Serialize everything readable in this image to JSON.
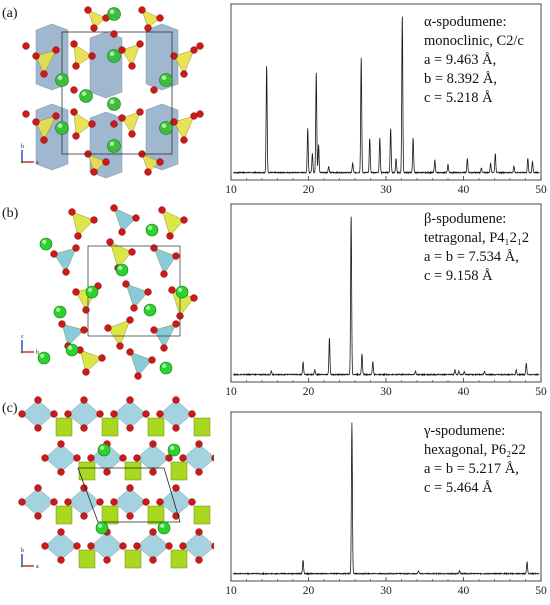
{
  "panels": [
    {
      "label": "(a)",
      "text_lines": [
        "α-spodumene:",
        "monoclinic, C2/c",
        "a = 9.463 Å,",
        "b = 8.392 Å,",
        "c = 5.218 Å"
      ],
      "crystal": {
        "axes": [
          "b",
          "a"
        ],
        "colors": {
          "tetra": "#e8e04a",
          "octa": "#7f9fbf",
          "oxygen": "#d01818",
          "lithium": "#3dbf3d"
        }
      }
    },
    {
      "label": "(b)",
      "text_lines": [
        "β-spodumene:",
        "tetragonal, P4₁2₁2",
        "a = b = 7.534 Å,",
        "c = 9.158 Å"
      ],
      "crystal": {
        "axes": [
          "c",
          "b"
        ],
        "colors": {
          "tetra": "#d8e63a",
          "octa": "#7ec8d8",
          "oxygen": "#d01818",
          "lithium": "#2ed22e"
        }
      }
    },
    {
      "label": "(c)",
      "text_lines": [
        "γ-spodumene:",
        "hexagonal, P6₂22",
        "a = b = 5.217 Å,",
        "c = 5.464 Å"
      ],
      "crystal": {
        "axes": [
          "b",
          "a"
        ],
        "colors": {
          "tetra": "#a8d820",
          "octa": "#8ec8d8",
          "oxygen": "#d01818",
          "lithium": "#2ed22e"
        }
      }
    }
  ],
  "chart_data": [
    {
      "type": "line",
      "xlim": [
        10,
        50
      ],
      "xticks": [
        "10",
        "20",
        "30",
        "40",
        "50"
      ],
      "peaks": [
        {
          "x": 14.6,
          "y": 0.68
        },
        {
          "x": 19.9,
          "y": 0.28
        },
        {
          "x": 20.5,
          "y": 0.12
        },
        {
          "x": 21.0,
          "y": 0.64
        },
        {
          "x": 21.3,
          "y": 0.18
        },
        {
          "x": 22.6,
          "y": 0.04
        },
        {
          "x": 25.7,
          "y": 0.06
        },
        {
          "x": 26.8,
          "y": 0.73
        },
        {
          "x": 27.9,
          "y": 0.22
        },
        {
          "x": 29.2,
          "y": 0.22
        },
        {
          "x": 30.6,
          "y": 0.28
        },
        {
          "x": 31.3,
          "y": 0.09
        },
        {
          "x": 32.1,
          "y": 1.0
        },
        {
          "x": 33.5,
          "y": 0.22
        },
        {
          "x": 36.3,
          "y": 0.08
        },
        {
          "x": 38.0,
          "y": 0.05
        },
        {
          "x": 40.5,
          "y": 0.09
        },
        {
          "x": 42.3,
          "y": 0.03
        },
        {
          "x": 43.5,
          "y": 0.06
        },
        {
          "x": 44.1,
          "y": 0.12
        },
        {
          "x": 46.5,
          "y": 0.04
        },
        {
          "x": 48.3,
          "y": 0.09
        },
        {
          "x": 48.9,
          "y": 0.07
        }
      ]
    },
    {
      "type": "line",
      "xlim": [
        10,
        50
      ],
      "xticks": [
        "10",
        "20",
        "30",
        "40",
        "50"
      ],
      "peaks": [
        {
          "x": 15.2,
          "y": 0.02
        },
        {
          "x": 19.3,
          "y": 0.08
        },
        {
          "x": 20.8,
          "y": 0.03
        },
        {
          "x": 22.7,
          "y": 0.23
        },
        {
          "x": 25.5,
          "y": 1.0
        },
        {
          "x": 26.9,
          "y": 0.13
        },
        {
          "x": 28.3,
          "y": 0.08
        },
        {
          "x": 33.8,
          "y": 0.02
        },
        {
          "x": 38.9,
          "y": 0.03
        },
        {
          "x": 39.4,
          "y": 0.02
        },
        {
          "x": 40.1,
          "y": 0.02
        },
        {
          "x": 42.7,
          "y": 0.02
        },
        {
          "x": 46.8,
          "y": 0.03
        },
        {
          "x": 48.1,
          "y": 0.07
        }
      ]
    },
    {
      "type": "line",
      "xlim": [
        10,
        50
      ],
      "xticks": [
        "10",
        "20",
        "30",
        "40",
        "50"
      ],
      "peaks": [
        {
          "x": 19.3,
          "y": 0.09
        },
        {
          "x": 25.6,
          "y": 1.0
        },
        {
          "x": 34.2,
          "y": 0.02
        },
        {
          "x": 39.5,
          "y": 0.02
        },
        {
          "x": 48.2,
          "y": 0.08
        }
      ]
    }
  ]
}
